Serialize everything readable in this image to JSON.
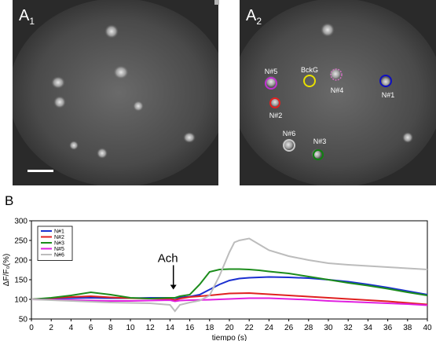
{
  "panels": {
    "a1": {
      "label": "A",
      "sub": "1"
    },
    "a2": {
      "label": "A",
      "sub": "2",
      "rois": [
        {
          "name": "N#5",
          "color": "#c030d0",
          "dashed": false
        },
        {
          "name": "BckG",
          "color": "#e8e000",
          "dashed": false
        },
        {
          "name": "N#4",
          "color": "#d070c0",
          "dashed": true
        },
        {
          "name": "N#1",
          "color": "#1010c0",
          "dashed": false
        },
        {
          "name": "N#2",
          "color": "#e02020",
          "dashed": false
        },
        {
          "name": "N#6",
          "color": "#c8c8c8",
          "dashed": false
        },
        {
          "name": "N#3",
          "color": "#108010",
          "dashed": false
        }
      ]
    }
  },
  "panel_b_label": "B",
  "chart_data": {
    "type": "line",
    "xlabel": "tiempo (s)",
    "ylabel": "ΔF/F₀(%)",
    "xlim": [
      0,
      40
    ],
    "ylim": [
      50,
      300
    ],
    "xticks": [
      0,
      2,
      4,
      6,
      8,
      10,
      12,
      14,
      16,
      18,
      20,
      22,
      24,
      26,
      28,
      30,
      32,
      34,
      36,
      38,
      40
    ],
    "yticks": [
      50,
      100,
      150,
      200,
      250,
      300
    ],
    "annotation": {
      "text": "Ach",
      "x": 14.5,
      "y": 125
    },
    "legend_position": "top-left",
    "series": [
      {
        "name": "N#1",
        "color": "#1a2fd0",
        "x": [
          0,
          2,
          4,
          6,
          8,
          10,
          12,
          14,
          14.5,
          15,
          16,
          17,
          18,
          19,
          20,
          21,
          22,
          23,
          24,
          26,
          28,
          30,
          32,
          34,
          36,
          38,
          40
        ],
        "y": [
          100,
          102,
          103,
          104,
          103,
          103,
          104,
          104,
          103,
          105,
          107,
          112,
          125,
          138,
          148,
          153,
          155,
          156,
          157,
          156,
          154,
          150,
          145,
          138,
          130,
          121,
          112
        ]
      },
      {
        "name": "N#2",
        "color": "#e02020",
        "x": [
          0,
          2,
          4,
          6,
          8,
          10,
          12,
          14,
          14.5,
          15,
          16,
          18,
          20,
          22,
          24,
          26,
          28,
          30,
          32,
          34,
          36,
          38,
          40
        ],
        "y": [
          100,
          103,
          106,
          108,
          105,
          103,
          102,
          101,
          98,
          102,
          106,
          110,
          115,
          116,
          113,
          110,
          107,
          104,
          101,
          98,
          95,
          91,
          87
        ]
      },
      {
        "name": "N#3",
        "color": "#1c8c1c",
        "x": [
          0,
          2,
          4,
          6,
          8,
          10,
          12,
          14,
          14.5,
          15,
          16,
          17,
          18,
          19,
          20,
          21,
          22,
          23,
          24,
          26,
          28,
          30,
          32,
          34,
          36,
          38,
          40
        ],
        "y": [
          100,
          104,
          110,
          118,
          112,
          104,
          102,
          104,
          104,
          108,
          112,
          138,
          170,
          176,
          177,
          177,
          176,
          174,
          171,
          166,
          158,
          150,
          142,
          135,
          127,
          118,
          110
        ]
      },
      {
        "name": "N#5",
        "color": "#e020e0",
        "x": [
          0,
          2,
          4,
          6,
          8,
          10,
          12,
          14,
          14.5,
          15,
          16,
          18,
          20,
          22,
          24,
          26,
          28,
          30,
          32,
          34,
          36,
          38,
          40
        ],
        "y": [
          100,
          99,
          98,
          97,
          96,
          96,
          97,
          98,
          95,
          97,
          98,
          99,
          101,
          103,
          103,
          101,
          99,
          96,
          94,
          92,
          90,
          88,
          85
        ]
      },
      {
        "name": "N#6",
        "color": "#bcbcbc",
        "x": [
          0,
          2,
          4,
          6,
          8,
          10,
          12,
          13,
          14,
          14.5,
          15,
          16,
          17,
          18,
          19,
          20,
          20.5,
          21,
          22,
          23,
          24,
          26,
          28,
          30,
          32,
          34,
          36,
          38,
          40
        ],
        "y": [
          100,
          98,
          96,
          94,
          92,
          91,
          90,
          88,
          86,
          70,
          86,
          92,
          97,
          110,
          160,
          220,
          245,
          250,
          255,
          240,
          225,
          210,
          200,
          192,
          188,
          185,
          182,
          179,
          176
        ]
      }
    ]
  }
}
